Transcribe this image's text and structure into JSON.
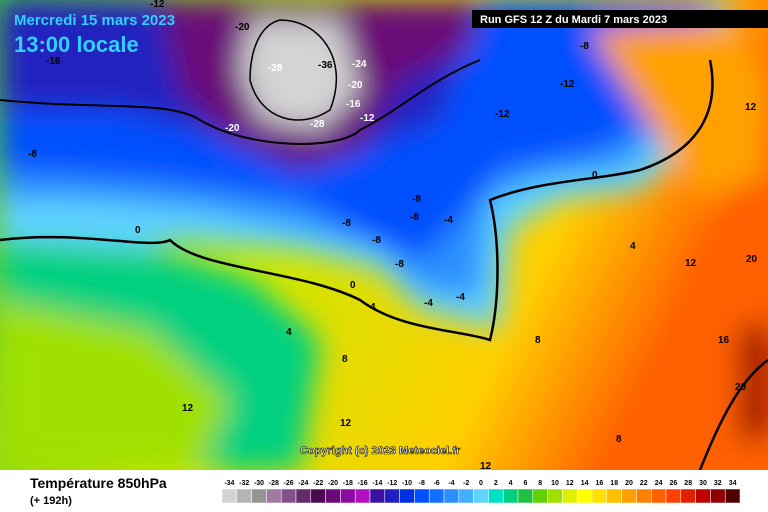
{
  "header": {
    "date": "Mercredi 15 mars 2023",
    "time": "13:00 locale",
    "run": "Run GFS 12 Z du Mardi 7 mars 2023"
  },
  "copyright": "Copyright (c) 2023 Meteociel.fr",
  "legend": {
    "title": "Température 850hPa",
    "subtitle": "(+ 192h)",
    "scale": [
      {
        "value": -34,
        "color": "#d4d4d4"
      },
      {
        "value": -32,
        "color": "#b4b4b4"
      },
      {
        "value": -30,
        "color": "#949494"
      },
      {
        "value": -28,
        "color": "#a07aa0"
      },
      {
        "value": -26,
        "color": "#84508a"
      },
      {
        "value": -24,
        "color": "#642a6a"
      },
      {
        "value": -22,
        "color": "#4a0a52"
      },
      {
        "value": -20,
        "color": "#6a0a78"
      },
      {
        "value": -18,
        "color": "#8c0a9c"
      },
      {
        "value": -16,
        "color": "#b010c0"
      },
      {
        "value": -14,
        "color": "#3a10a0"
      },
      {
        "value": -12,
        "color": "#2020c0"
      },
      {
        "value": -10,
        "color": "#0030e0"
      },
      {
        "value": -8,
        "color": "#0050ff"
      },
      {
        "value": -6,
        "color": "#1070ff"
      },
      {
        "value": -4,
        "color": "#2a90ff"
      },
      {
        "value": -2,
        "color": "#40b0ff"
      },
      {
        "value": 0,
        "color": "#60d4ff"
      },
      {
        "value": 2,
        "color": "#00e0c8"
      },
      {
        "value": 4,
        "color": "#00d080"
      },
      {
        "value": 6,
        "color": "#20c040"
      },
      {
        "value": 8,
        "color": "#60d000"
      },
      {
        "value": 10,
        "color": "#a0e000"
      },
      {
        "value": 12,
        "color": "#dcf000"
      },
      {
        "value": 14,
        "color": "#ffff00"
      },
      {
        "value": 16,
        "color": "#ffe000"
      },
      {
        "value": 18,
        "color": "#ffc000"
      },
      {
        "value": 20,
        "color": "#ffa000"
      },
      {
        "value": 22,
        "color": "#ff8000"
      },
      {
        "value": 24,
        "color": "#ff6000"
      },
      {
        "value": 26,
        "color": "#ff4000"
      },
      {
        "value": 28,
        "color": "#e02000"
      },
      {
        "value": 30,
        "color": "#c00000"
      },
      {
        "value": 32,
        "color": "#900000"
      },
      {
        "value": 34,
        "color": "#500000"
      }
    ]
  },
  "contour_labels": [
    "-20",
    "-16",
    "-12",
    "-28",
    "-36",
    "-24",
    "-20",
    "-16",
    "-12",
    "-20",
    "-28",
    "-12",
    "-12",
    "-8",
    "-8",
    "-8",
    "0",
    "-8",
    "-8",
    "-4",
    "-8",
    "0",
    "-4",
    "-4",
    "4",
    "4",
    "8",
    "8",
    "12",
    "12",
    "12",
    "16",
    "20",
    "20",
    "12",
    "8",
    "4",
    "0",
    "-8",
    "12"
  ]
}
